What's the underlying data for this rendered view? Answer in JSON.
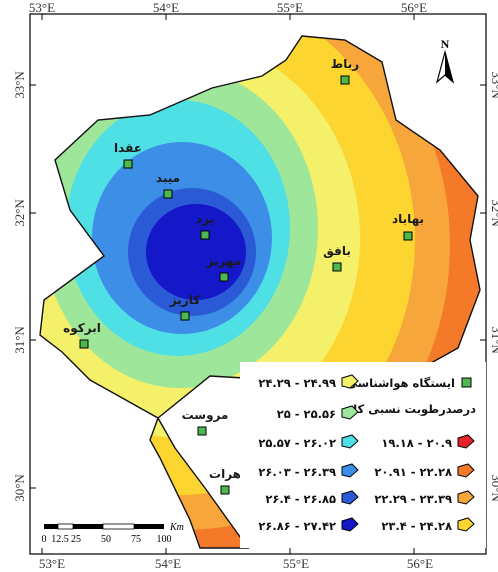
{
  "map": {
    "coords": {
      "top": [
        "53°E",
        "54°E",
        "55°E",
        "56°E"
      ],
      "bottom": [
        "53°E",
        "54°E",
        "55°E",
        "56°E"
      ],
      "left": [
        "33°N",
        "32°N",
        "31°N",
        "30°N"
      ],
      "right": [
        "33°N",
        "32°N",
        "31°N",
        "30°N"
      ]
    },
    "north_label": "N",
    "scale": {
      "ticks": [
        "0",
        "12.5",
        "25",
        "50",
        "75",
        "100"
      ],
      "unit": "Km"
    },
    "stations": [
      {
        "id": "robat",
        "name": "رباط"
      },
      {
        "id": "aqda",
        "name": "عقدا"
      },
      {
        "id": "meybod",
        "name": "میبد"
      },
      {
        "id": "yazd",
        "name": "یزد"
      },
      {
        "id": "bahabad",
        "name": "بهاباد"
      },
      {
        "id": "mehriz",
        "name": "مهریز"
      },
      {
        "id": "bafgh",
        "name": "بافق"
      },
      {
        "id": "kariz",
        "name": "کاریز"
      },
      {
        "id": "abarkuh",
        "name": "ابرکوه"
      },
      {
        "id": "marvast",
        "name": "مروست"
      },
      {
        "id": "harat",
        "name": "هرات"
      }
    ]
  },
  "legend": {
    "station_label": "ایستگاه هواشناسی",
    "title": "درصدرطوبت نسبی کل",
    "classes": [
      {
        "id": "c1",
        "range": "۱۹.۱۸ - ۲۰.۹",
        "color": "#e8222a"
      },
      {
        "id": "c2",
        "range": "۲۰.۹۱ - ۲۲.۲۸",
        "color": "#f47a2a"
      },
      {
        "id": "c3",
        "range": "۲۲.۲۹ - ۲۳.۳۹",
        "color": "#f6a63a"
      },
      {
        "id": "c4",
        "range": "۲۳.۴ - ۲۴.۲۸",
        "color": "#fcd530"
      },
      {
        "id": "c5",
        "range": "۲۴.۲۹ - ۲۴.۹۹",
        "color": "#f4f06a"
      },
      {
        "id": "c6",
        "range": "۲۵ - ۲۵.۵۶",
        "color": "#9ee69a"
      },
      {
        "id": "c7",
        "range": "۲۵.۵۷ - ۲۶.۰۲",
        "color": "#4fe0e6"
      },
      {
        "id": "c8",
        "range": "۲۶.۰۳ - ۲۶.۳۹",
        "color": "#3d8ee6"
      },
      {
        "id": "c9",
        "range": "۲۶.۴ - ۲۶.۸۵",
        "color": "#2a5ad6"
      },
      {
        "id": "c10",
        "range": "۲۶.۸۶ - ۲۷.۴۲",
        "color": "#1418c8"
      }
    ]
  }
}
